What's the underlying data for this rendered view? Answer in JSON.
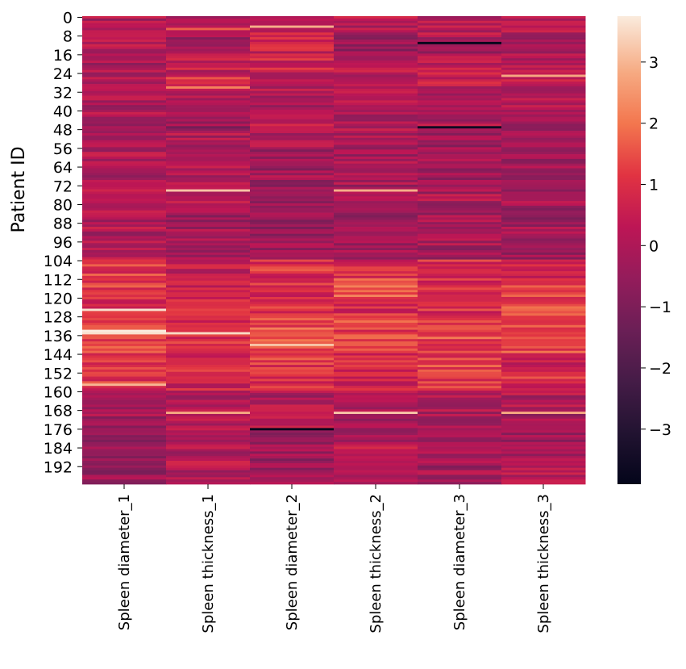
{
  "chart_data": {
    "type": "heatmap",
    "title": "",
    "xlabel": "",
    "ylabel": "Patient ID",
    "columns": [
      "Spleen diameter_1",
      "Spleen thickness_1",
      "Spleen diameter_2",
      "Spleen thickness_2",
      "Spleen diameter_3",
      "Spleen thickness_3"
    ],
    "row_count": 200,
    "row_ticks": [
      "0",
      "8",
      "16",
      "24",
      "32",
      "40",
      "48",
      "56",
      "64",
      "72",
      "80",
      "88",
      "96",
      "104",
      "112",
      "120",
      "128",
      "136",
      "144",
      "152",
      "160",
      "168",
      "176",
      "184",
      "192"
    ],
    "row_tick_values": [
      0,
      8,
      16,
      24,
      32,
      40,
      48,
      56,
      64,
      72,
      80,
      88,
      96,
      104,
      112,
      120,
      128,
      136,
      144,
      152,
      160,
      168,
      176,
      184,
      192
    ],
    "value_range": [
      -3.9,
      3.75
    ],
    "colorbar": {
      "ticks": [
        "3",
        "2",
        "1",
        "0",
        "−1",
        "−2",
        "−3"
      ],
      "tick_values": [
        3,
        2,
        1,
        0,
        -1,
        -2,
        -3
      ]
    },
    "colormap": "rocket",
    "segment_levels": [
      [
        0,
        0.25,
        0.4,
        0.2,
        0.3,
        0.15
      ],
      [
        0,
        -0.3,
        0.5,
        -0.4,
        -0.3,
        -0.2
      ],
      [
        0,
        0.4,
        0.6,
        0.1,
        0.3,
        0.2
      ],
      [
        0,
        0.3,
        0.2,
        0.0,
        0.35,
        0.3
      ],
      [
        0,
        0.3,
        -0.2,
        0.1,
        -0.1,
        0.25
      ],
      [
        0,
        -0.45,
        0.2,
        -0.2,
        0.0,
        -0.45
      ],
      [
        0,
        0.0,
        -0.1,
        0.0,
        -0.3,
        0.0
      ],
      [
        0,
        -0.2,
        -0.3,
        -0.2,
        -0.1,
        -0.3
      ],
      [
        0,
        -0.1,
        -0.3,
        -0.2,
        -0.2,
        -0.2
      ],
      [
        0,
        0.0,
        -0.3,
        -0.2,
        -0.1,
        -0.1
      ],
      [
        0,
        -0.3,
        -0.3,
        -0.3,
        -0.2,
        -0.3
      ],
      [
        0,
        -0.2,
        -0.4,
        -0.1,
        -0.2,
        -0.3
      ],
      [
        0,
        -0.3,
        -0.2,
        -0.3,
        -0.2,
        -0.3
      ],
      [
        1.2,
        0.5,
        1.0,
        0.8,
        0.8,
        0.6
      ],
      [
        1.3,
        0.6,
        1.0,
        1.5,
        1.0,
        1.2
      ],
      [
        1.0,
        0.9,
        1.2,
        0.9,
        1.0,
        1.3
      ],
      [
        1.2,
        1.0,
        1.5,
        1.3,
        1.2,
        1.6
      ],
      [
        1.4,
        1.0,
        1.4,
        1.5,
        1.4,
        1.3
      ],
      [
        1.0,
        0.9,
        1.1,
        1.0,
        1.2,
        0.7
      ],
      [
        1.0,
        0.5,
        0.9,
        0.8,
        0.9,
        1.0
      ],
      [
        -0.2,
        0.0,
        0.0,
        0.1,
        -0.1,
        0.0
      ],
      [
        -0.3,
        0.2,
        0.0,
        -0.3,
        0.0,
        -0.1
      ],
      [
        -0.5,
        -0.1,
        -0.3,
        0.0,
        -0.5,
        -0.2
      ],
      [
        -0.6,
        0.1,
        -0.4,
        0.2,
        -0.3,
        -0.3
      ],
      [
        -0.4,
        0.0,
        -0.2,
        0.2,
        -0.2,
        0.0
      ]
    ],
    "outliers": [
      {
        "row": 5,
        "column": 1,
        "value": 1.7
      },
      {
        "row": 4,
        "column": 2,
        "value": 2.9
      },
      {
        "row": 11,
        "column": 4,
        "value": -3.85
      },
      {
        "row": 26,
        "column": 1,
        "value": 1.6
      },
      {
        "row": 25,
        "column": 5,
        "value": 2.8
      },
      {
        "row": 30,
        "column": 1,
        "value": 2.2
      },
      {
        "row": 47,
        "column": 4,
        "value": -3.6
      },
      {
        "row": 74,
        "column": 1,
        "value": 3.2
      },
      {
        "row": 74,
        "column": 3,
        "value": 2.9
      },
      {
        "row": 125,
        "column": 0,
        "value": 3.6
      },
      {
        "row": 134,
        "column": 0,
        "value": 3.75
      },
      {
        "row": 135,
        "column": 0,
        "value": 3.6
      },
      {
        "row": 135,
        "column": 1,
        "value": 3.5
      },
      {
        "row": 140,
        "column": 2,
        "value": 3.2
      },
      {
        "row": 157,
        "column": 0,
        "value": 3.0
      },
      {
        "row": 169,
        "column": 1,
        "value": 2.8
      },
      {
        "row": 169,
        "column": 3,
        "value": 3.2
      },
      {
        "row": 169,
        "column": 5,
        "value": 2.8
      },
      {
        "row": 176,
        "column": 2,
        "value": -3.8
      }
    ]
  }
}
